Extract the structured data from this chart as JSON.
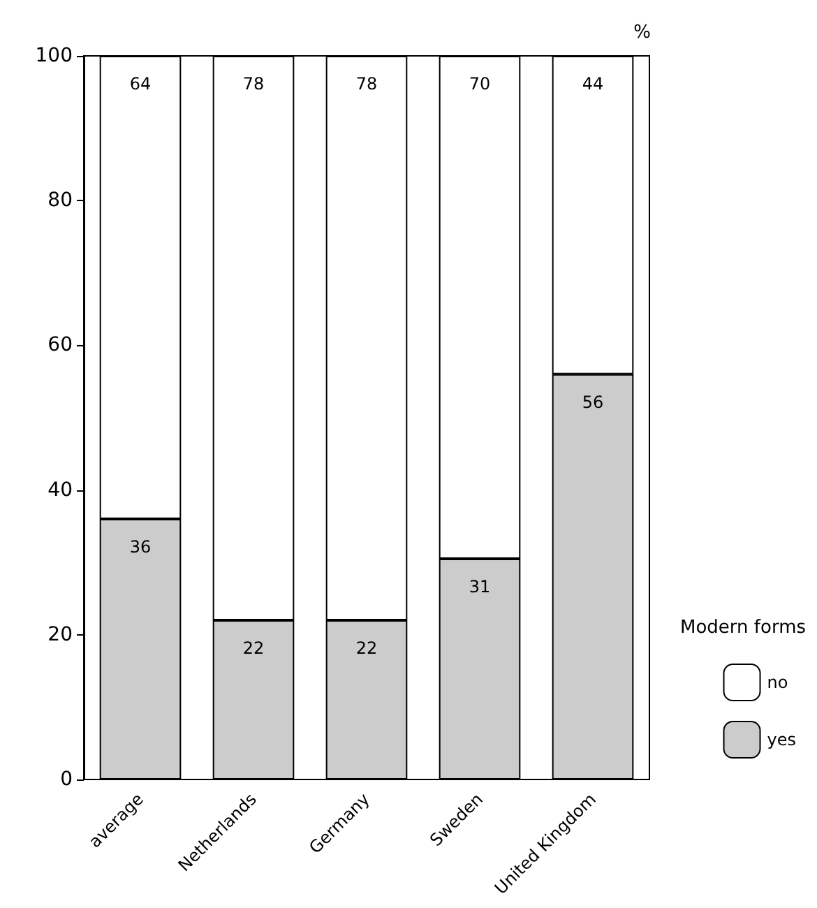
{
  "chart_data": {
    "type": "bar",
    "stacked": true,
    "ylabel": "%",
    "legend_title": "Modern forms",
    "legend": "right",
    "categories": [
      "average",
      "Netherlands",
      "Germany",
      "Sweden",
      "United Kingdom"
    ],
    "series": [
      {
        "name": "yes",
        "color": "#cccccc",
        "values": [
          36,
          22,
          22,
          30.5,
          56
        ],
        "value_labels": [
          "36",
          "22",
          "22",
          "31",
          "56"
        ]
      },
      {
        "name": "no",
        "color": "#ffffff",
        "values": [
          64,
          78,
          78,
          69.5,
          44
        ],
        "value_labels": [
          "64",
          "78",
          "78",
          "70",
          "44"
        ]
      }
    ],
    "ylim": [
      0,
      100
    ],
    "yticks": [
      0,
      20,
      40,
      60,
      80,
      100
    ],
    "grid": false
  }
}
